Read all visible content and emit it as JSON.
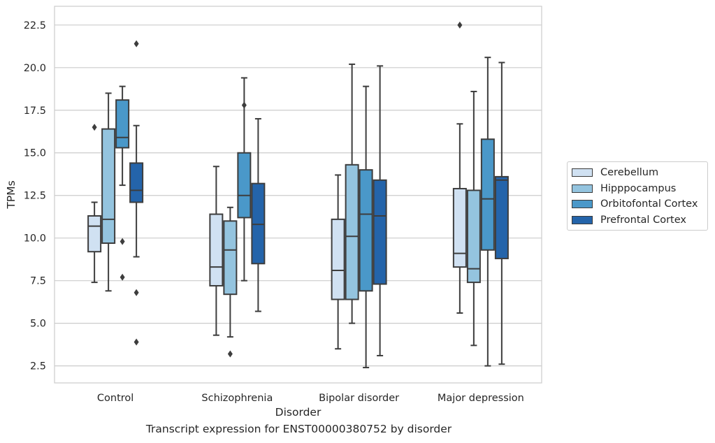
{
  "caption": "Transcript expression for ENST00000380752 by disorder",
  "chart_data": {
    "type": "box",
    "xlabel": "Disorder",
    "ylabel": "TPMs",
    "ylim": [
      1.5,
      23.6
    ],
    "yticks": [
      "2.5",
      "5.0",
      "7.5",
      "10.0",
      "12.5",
      "15.0",
      "17.5",
      "20.0",
      "22.5"
    ],
    "grid": true,
    "legend_position": "right, outside plot",
    "categories": [
      "Control",
      "Schizophrenia",
      "Bipolar disorder",
      "Major depression"
    ],
    "series": [
      {
        "name": "Cerebellum",
        "color": "#d0e1f2",
        "boxes": [
          {
            "whisker_low": 7.4,
            "q1": 9.2,
            "median": 10.7,
            "q3": 11.3,
            "whisker_high": 12.1,
            "outliers": [
              16.5
            ]
          },
          {
            "whisker_low": 4.3,
            "q1": 7.2,
            "median": 8.3,
            "q3": 11.4,
            "whisker_high": 14.2,
            "outliers": []
          },
          {
            "whisker_low": 3.5,
            "q1": 6.4,
            "median": 8.1,
            "q3": 11.1,
            "whisker_high": 13.7,
            "outliers": []
          },
          {
            "whisker_low": 5.6,
            "q1": 8.3,
            "median": 9.1,
            "q3": 12.9,
            "whisker_high": 16.7,
            "outliers": [
              22.5
            ]
          }
        ]
      },
      {
        "name": "Hipppocampus",
        "color": "#94c4df",
        "boxes": [
          {
            "whisker_low": 6.9,
            "q1": 9.7,
            "median": 11.1,
            "q3": 16.4,
            "whisker_high": 18.5,
            "outliers": []
          },
          {
            "whisker_low": 4.2,
            "q1": 6.7,
            "median": 9.3,
            "q3": 11.0,
            "whisker_high": 11.8,
            "outliers": [
              3.2
            ]
          },
          {
            "whisker_low": 5.0,
            "q1": 6.4,
            "median": 10.1,
            "q3": 14.3,
            "whisker_high": 20.2,
            "outliers": []
          },
          {
            "whisker_low": 3.7,
            "q1": 7.4,
            "median": 8.2,
            "q3": 12.8,
            "whisker_high": 18.6,
            "outliers": []
          }
        ]
      },
      {
        "name": "Orbitofontal Cortex",
        "color": "#4a98c9",
        "boxes": [
          {
            "whisker_low": 13.1,
            "q1": 15.3,
            "median": 15.9,
            "q3": 18.1,
            "whisker_high": 18.9,
            "outliers": [
              9.8,
              7.7
            ]
          },
          {
            "whisker_low": 7.5,
            "q1": 11.2,
            "median": 12.5,
            "q3": 15.0,
            "whisker_high": 19.4,
            "outliers": [
              17.8
            ]
          },
          {
            "whisker_low": 2.4,
            "q1": 6.9,
            "median": 11.4,
            "q3": 14.0,
            "whisker_high": 18.9,
            "outliers": []
          },
          {
            "whisker_low": 2.5,
            "q1": 9.3,
            "median": 12.3,
            "q3": 15.8,
            "whisker_high": 20.6,
            "outliers": []
          }
        ]
      },
      {
        "name": "Prefrontal Cortex",
        "color": "#2464aa",
        "boxes": [
          {
            "whisker_low": 8.9,
            "q1": 12.1,
            "median": 12.8,
            "q3": 14.4,
            "whisker_high": 16.6,
            "outliers": [
              21.4,
              6.8,
              3.9
            ]
          },
          {
            "whisker_low": 5.7,
            "q1": 8.5,
            "median": 10.8,
            "q3": 13.2,
            "whisker_high": 17.0,
            "outliers": []
          },
          {
            "whisker_low": 3.1,
            "q1": 7.3,
            "median": 11.3,
            "q3": 13.4,
            "whisker_high": 20.1,
            "outliers": []
          },
          {
            "whisker_low": 2.6,
            "q1": 8.8,
            "median": 13.4,
            "q3": 13.6,
            "whisker_high": 20.3,
            "outliers": []
          }
        ]
      }
    ]
  }
}
